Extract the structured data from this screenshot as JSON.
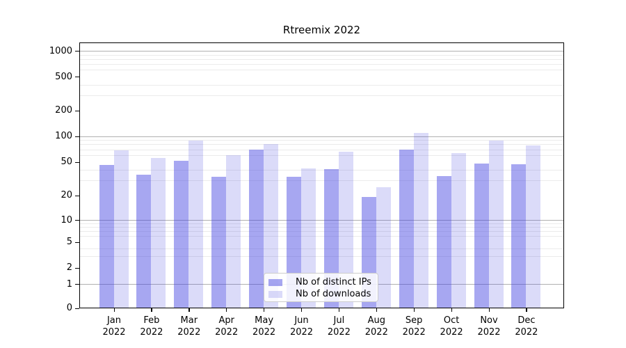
{
  "figure": {
    "title": "Rtreemix 2022",
    "background": "#ffffff"
  },
  "legend": {
    "items": [
      {
        "label": "Nb of distinct IPs",
        "color": "rgba(64,64,224,0.46)"
      },
      {
        "label": "Nb of downloads",
        "color": "rgba(64,64,224,0.19)"
      }
    ]
  },
  "y_axis": {
    "tick_labels": [
      "1000",
      "500",
      "200",
      "100",
      "50",
      "20",
      "10",
      "5",
      "2",
      "1",
      "0"
    ],
    "tick_values": [
      1000,
      500,
      200,
      100,
      50,
      20,
      10,
      5,
      2,
      1,
      0
    ]
  },
  "x_axis": {
    "tick_labels": [
      [
        "Jan",
        "2022"
      ],
      [
        "Feb",
        "2022"
      ],
      [
        "Mar",
        "2022"
      ],
      [
        "Apr",
        "2022"
      ],
      [
        "May",
        "2022"
      ],
      [
        "Jun",
        "2022"
      ],
      [
        "Jul",
        "2022"
      ],
      [
        "Aug",
        "2022"
      ],
      [
        "Sep",
        "2022"
      ],
      [
        "Oct",
        "2022"
      ],
      [
        "Nov",
        "2022"
      ],
      [
        "Dec",
        "2022"
      ]
    ]
  },
  "chart_data": {
    "type": "bar",
    "title": "Rtreemix 2022",
    "categories": [
      "Jan 2022",
      "Feb 2022",
      "Mar 2022",
      "Apr 2022",
      "May 2022",
      "Jun 2022",
      "Jul 2022",
      "Aug 2022",
      "Sep 2022",
      "Oct 2022",
      "Nov 2022",
      "Dec 2022"
    ],
    "series": [
      {
        "name": "Nb of distinct IPs",
        "key": "distinct-ips",
        "color": "rgba(64,64,224,0.46)",
        "values": [
          46,
          35,
          51,
          33,
          70,
          33,
          41,
          19,
          70,
          34,
          48,
          47
        ]
      },
      {
        "name": "Nb of downloads",
        "key": "downloads",
        "color": "rgba(64,64,224,0.19)",
        "values": [
          68,
          55,
          88,
          60,
          81,
          42,
          66,
          25,
          108,
          63,
          88,
          77
        ]
      }
    ],
    "xlabel": "",
    "ylabel": "",
    "yscale": "symlog",
    "yticks": [
      0,
      1,
      2,
      5,
      10,
      20,
      50,
      100,
      200,
      500,
      1000
    ],
    "ylim": [
      0,
      1300
    ],
    "grid": true,
    "grid_major_at": [
      1,
      10,
      100,
      1000
    ],
    "legend_position": "lower center"
  }
}
